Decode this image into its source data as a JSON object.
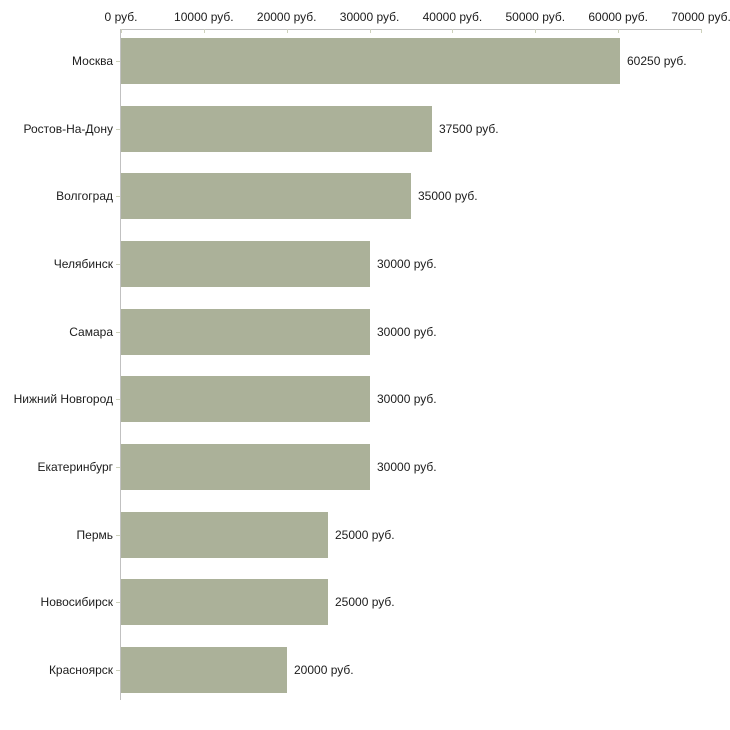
{
  "chart_data": {
    "type": "bar",
    "orientation": "horizontal",
    "unit": "руб.",
    "grid": false,
    "legend": false,
    "categories": [
      "Москва",
      "Ростов-На-Дону",
      "Волгоград",
      "Челябинск",
      "Самара",
      "Нижний Новгород",
      "Екатеринбург",
      "Пермь",
      "Новосибирск",
      "Красноярск"
    ],
    "values": [
      60250,
      37500,
      35000,
      30000,
      30000,
      30000,
      30000,
      25000,
      25000,
      20000
    ],
    "value_labels": [
      "60250 руб.",
      "37500 руб.",
      "35000 руб.",
      "30000 руб.",
      "30000 руб.",
      "30000 руб.",
      "30000 руб.",
      "25000 руб.",
      "25000 руб.",
      "20000 руб."
    ],
    "x_axis": {
      "position": "top",
      "min": 0,
      "max": 70000,
      "tick_interval": 10000,
      "tick_values": [
        0,
        10000,
        20000,
        30000,
        40000,
        50000,
        60000,
        70000
      ],
      "tick_labels": [
        "0 руб.",
        "10000 руб.",
        "20000 руб.",
        "30000 руб.",
        "40000 руб.",
        "50000 руб.",
        "60000 руб.",
        "70000 руб."
      ]
    },
    "colors": {
      "bar_fill": "#abb199",
      "axis_line": "#c1c1c1",
      "tick_mark": "#cdd1bb",
      "label_text": "#1c1c1c",
      "background": "#ffffff"
    }
  }
}
